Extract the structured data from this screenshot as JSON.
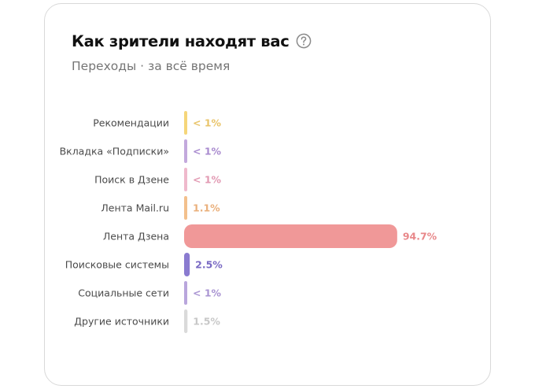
{
  "card": {
    "title": "Как зрители находят вас",
    "subtitle": "Переходы · за всё время",
    "help_icon": "question-circle-icon"
  },
  "chart_data": {
    "type": "bar",
    "orientation": "horizontal",
    "title": "Как зрители находят вас",
    "subtitle": "Переходы · за всё время",
    "categories": [
      "Рекомендации",
      "Вкладка «Подписки»",
      "Поиск в Дзене",
      "Лента Mail.ru",
      "Лента Дзена",
      "Поисковые системы",
      "Социальные сети",
      "Другие источники"
    ],
    "values": [
      0.5,
      0.5,
      0.5,
      1.1,
      94.7,
      2.5,
      0.5,
      1.5
    ],
    "value_labels": [
      "< 1%",
      "< 1%",
      "< 1%",
      "1.1%",
      "94.7%",
      "2.5%",
      "< 1%",
      "1.5%"
    ],
    "colors": [
      "#f5d67a",
      "#c3a9dc",
      "#efb9cc",
      "#f3c08c",
      "#f09898",
      "#8a7bd0",
      "#b9a6dc",
      "#dadada"
    ],
    "label_colors": [
      "#e9c46a",
      "#a98bcf",
      "#e29ab3",
      "#eab07c",
      "#e8888a",
      "#7a6ac4",
      "#a994d2",
      "#c8c8c8"
    ],
    "xlim": [
      0,
      100
    ],
    "unit": "%",
    "grid": false,
    "legend": false
  }
}
